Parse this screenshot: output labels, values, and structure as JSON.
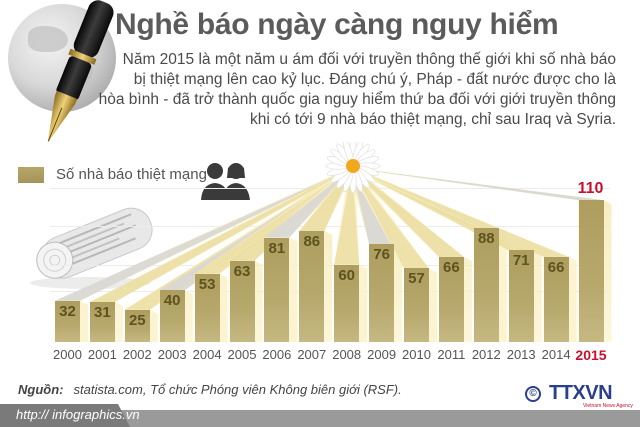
{
  "header": {
    "title": "Nghề báo ngày càng nguy hiểm",
    "intro_lines": [
      "Năm 2015 là một năm u ám đối với truyền thông thế giới khi số nhà báo",
      "bị thiệt mạng lên cao kỷ lục. Đáng chú ý, Pháp - đất nước được cho là",
      "hòa bình - đã trở thành quốc gia nguy hiểm thứ ba đối với giới truyền thông",
      "khi có tới 9 nhà báo thiệt mạng, chỉ sau Iraq và Syria."
    ]
  },
  "legend": {
    "label": "Số nhà báo thiệt mạng",
    "color": "#b0a162"
  },
  "icons": [
    "globe-icon",
    "fountain-pen-icon",
    "people-icon",
    "newspaper-icon",
    "daisy-icon"
  ],
  "chart_data": {
    "type": "bar",
    "title": "Nghề báo ngày càng nguy hiểm",
    "xlabel": "",
    "ylabel": "Số nhà báo thiệt mạng",
    "categories": [
      "2000",
      "2001",
      "2002",
      "2003",
      "2004",
      "2005",
      "2006",
      "2007",
      "2008",
      "2009",
      "2010",
      "2011",
      "2012",
      "2013",
      "2014",
      "2015"
    ],
    "series": [
      {
        "name": "Số nhà báo thiệt mạng",
        "values": [
          32,
          31,
          25,
          40,
          53,
          63,
          81,
          86,
          60,
          76,
          57,
          66,
          88,
          71,
          66,
          110
        ]
      }
    ],
    "highlight": {
      "category": "2015",
      "color": "#c8102e"
    },
    "ylim": [
      0,
      120
    ],
    "grid": true,
    "legend_position": "top-left"
  },
  "footer": {
    "source_label": "Nguồn:",
    "source_text": "statista.com, Tổ chức Phóng viên Không biên giới (RSF).",
    "url": "http:// infographics.vn",
    "logo_text": "TTXVN",
    "logo_sub": "Vietnam News Agency",
    "copyright": "©"
  },
  "colors": {
    "bar": "#b0a162",
    "value_text": "#5e531e",
    "highlight": "#c8102e",
    "title": "#5b5b5b",
    "logo": "#2b3f8f"
  }
}
